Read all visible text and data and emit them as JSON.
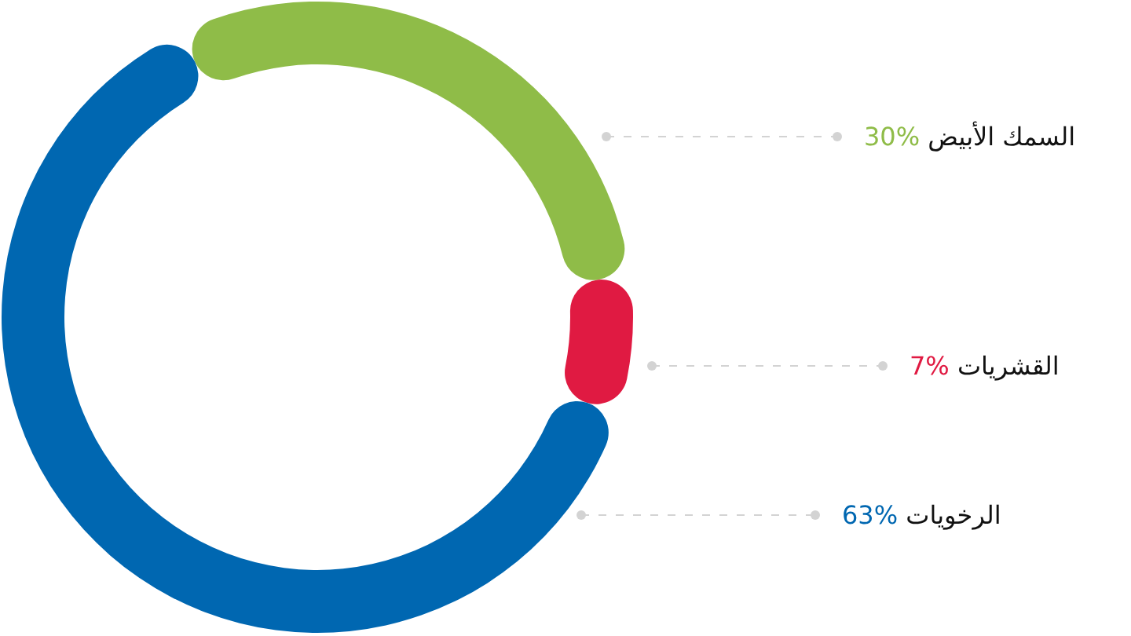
{
  "chart_data": {
    "type": "donut",
    "categories": [
      "السمك الأبيض",
      "القشريات",
      "الرخويات"
    ],
    "values": [
      30,
      7,
      63
    ],
    "colors": [
      "#8fbc48",
      "#e01a42",
      "#0067b1"
    ],
    "value_labels": [
      "30%",
      "7%",
      "63%"
    ]
  }
}
